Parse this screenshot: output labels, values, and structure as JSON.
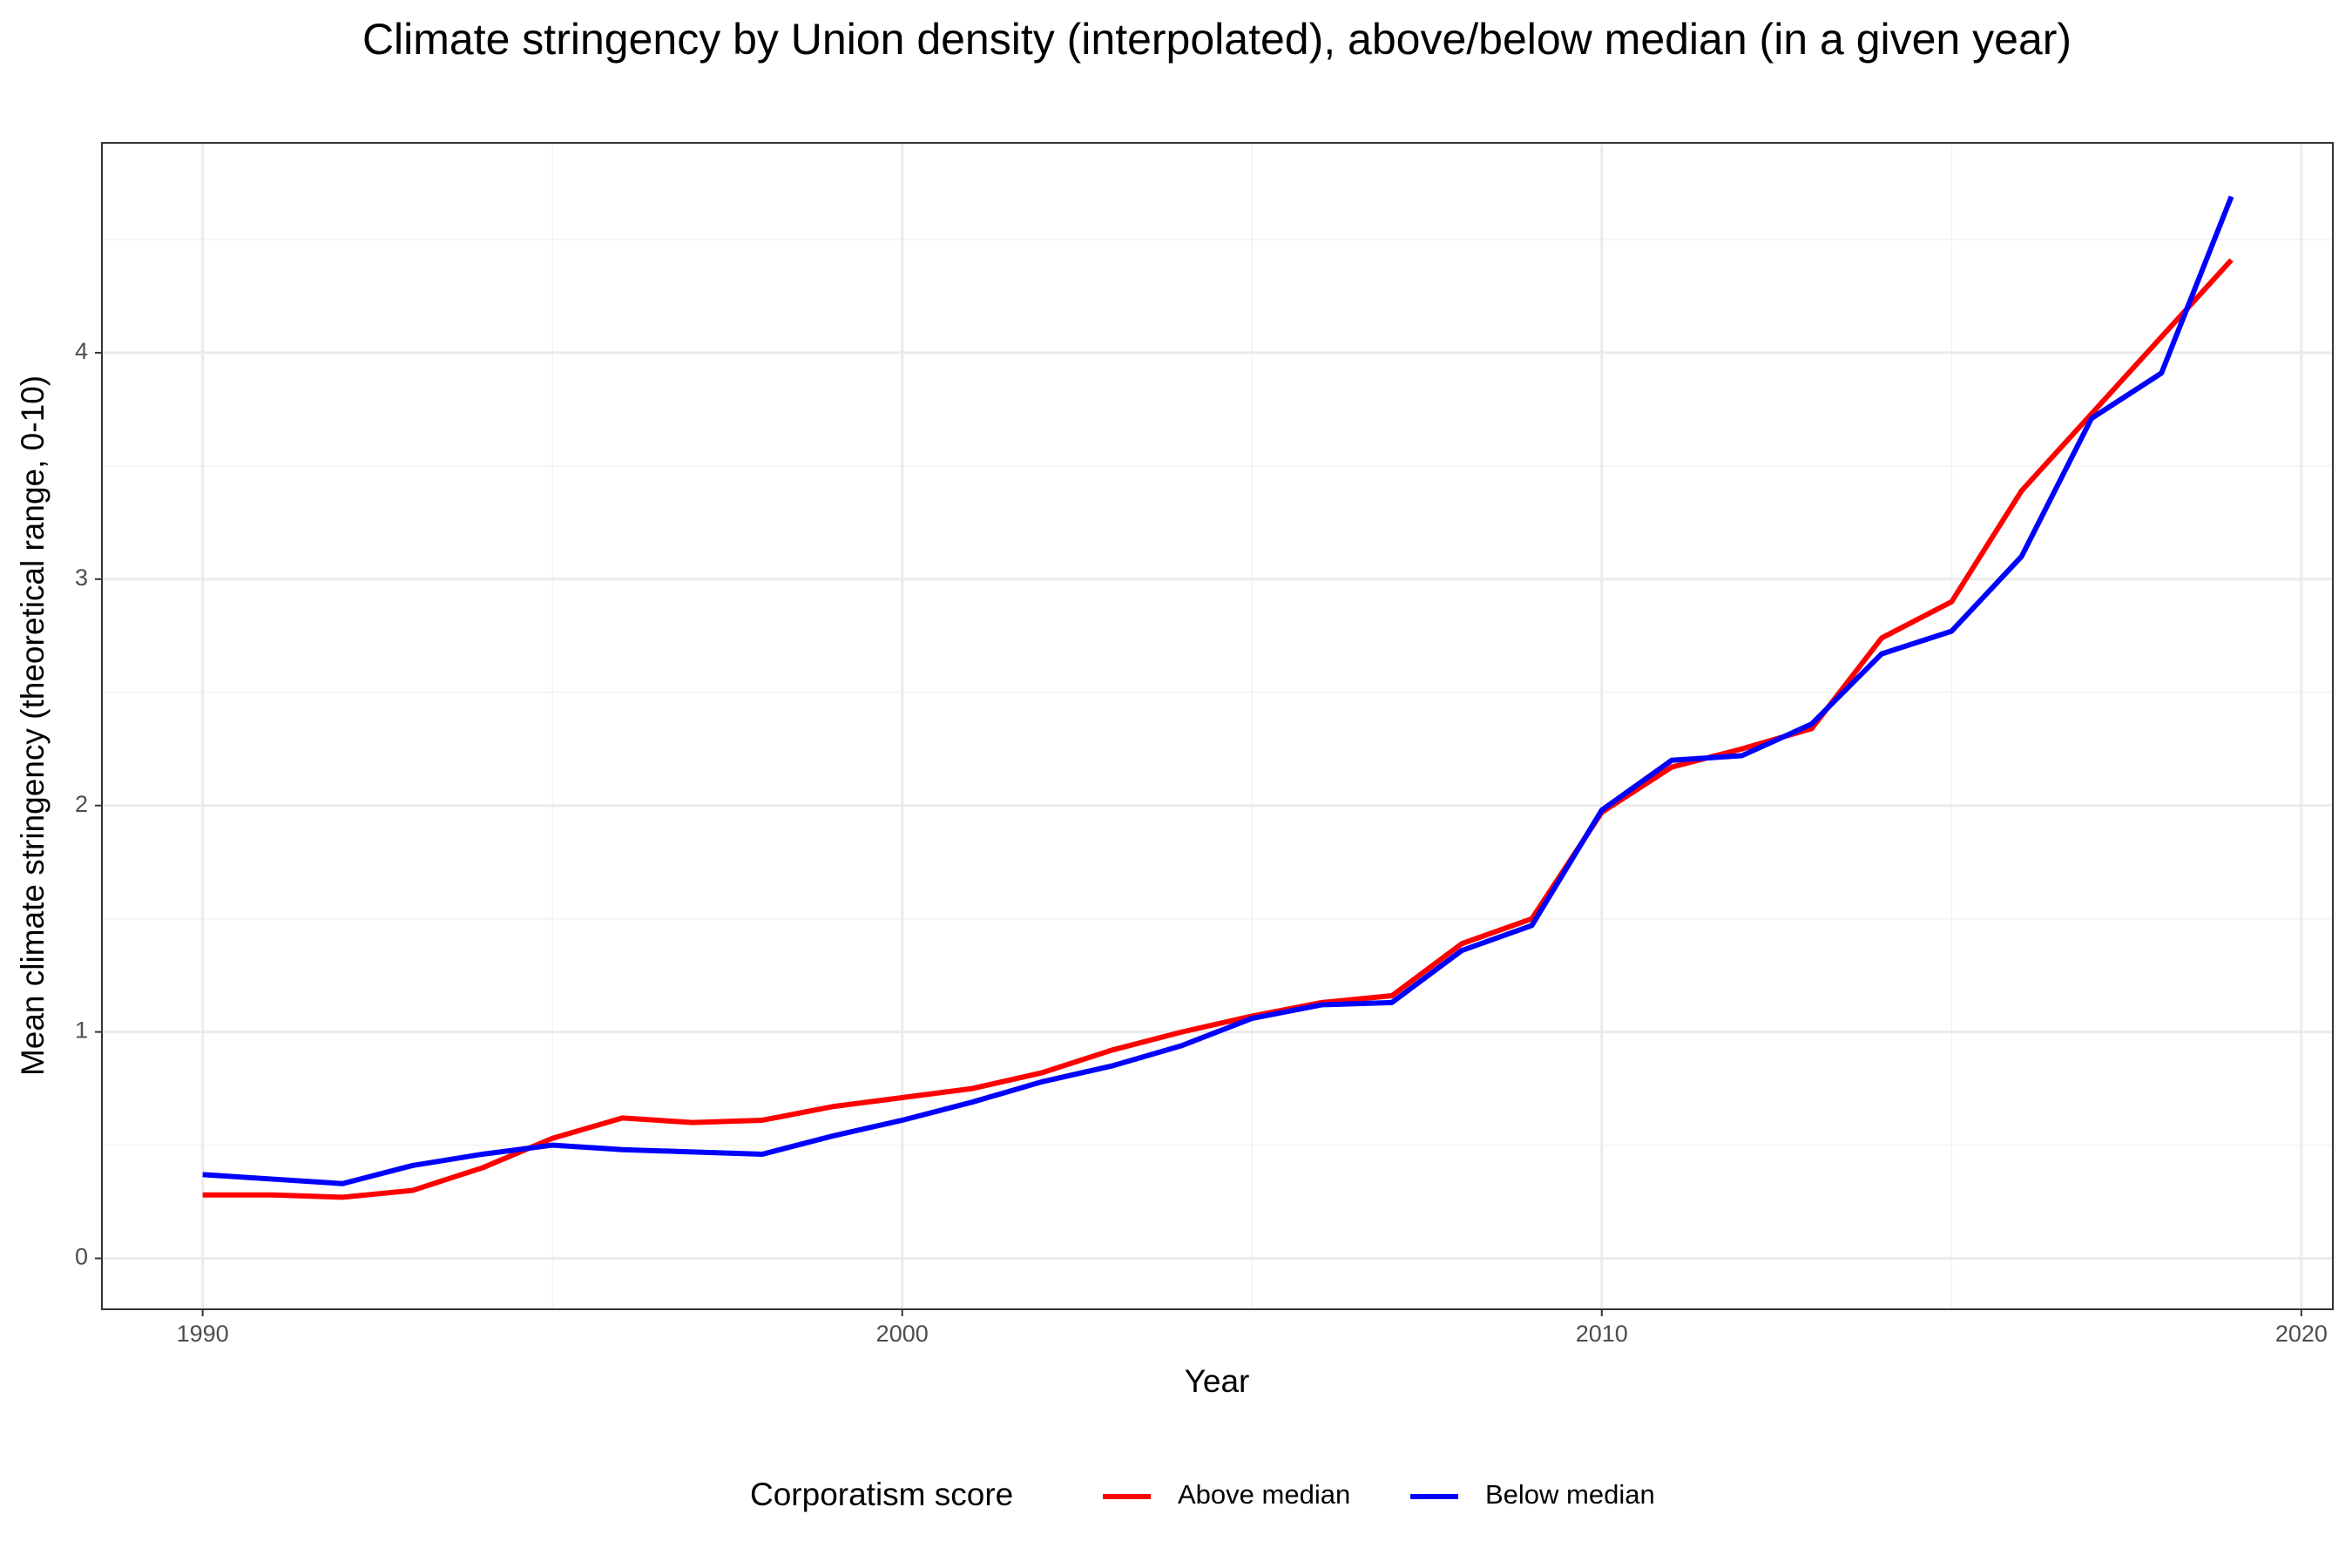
{
  "chart_data": {
    "type": "line",
    "title": "Climate stringency by Union density (interpolated), above/below median (in a given year)",
    "x_label": "Year",
    "y_label": "Mean climate stringency (theoretical range, 0-10)",
    "legend_title": "Corporatism score",
    "legend_position": "bottom",
    "grid": true,
    "x": [
      1990,
      1991,
      1992,
      1993,
      1994,
      1995,
      1996,
      1997,
      1998,
      1999,
      2000,
      2001,
      2002,
      2003,
      2004,
      2005,
      2006,
      2007,
      2008,
      2009,
      2010,
      2011,
      2012,
      2013,
      2014,
      2015,
      2016,
      2017,
      2018,
      2019
    ],
    "series": [
      {
        "name": "Above median",
        "color": "#ff0000",
        "values": [
          0.28,
          0.28,
          0.27,
          0.3,
          0.4,
          0.53,
          0.62,
          0.6,
          0.61,
          0.67,
          0.71,
          0.75,
          0.82,
          0.92,
          1.0,
          1.07,
          1.13,
          1.16,
          1.39,
          1.5,
          1.97,
          2.17,
          2.25,
          2.34,
          2.74,
          2.9,
          3.39,
          3.73,
          4.07,
          4.41
        ]
      },
      {
        "name": "Below median",
        "color": "#0000ff",
        "values": [
          0.37,
          0.35,
          0.33,
          0.41,
          0.46,
          0.5,
          0.48,
          0.47,
          0.46,
          0.54,
          0.61,
          0.69,
          0.78,
          0.85,
          0.94,
          1.06,
          1.12,
          1.13,
          1.36,
          1.47,
          1.98,
          2.2,
          2.22,
          2.36,
          2.67,
          2.77,
          3.1,
          3.71,
          3.91,
          4.69
        ]
      }
    ],
    "xlim": [
      1988.56,
      2020.45
    ],
    "xticks": [
      1990,
      2000,
      2010,
      2020
    ],
    "ylim": [
      -0.225,
      4.927
    ],
    "yticks": [
      0,
      1,
      2,
      3,
      4
    ]
  }
}
